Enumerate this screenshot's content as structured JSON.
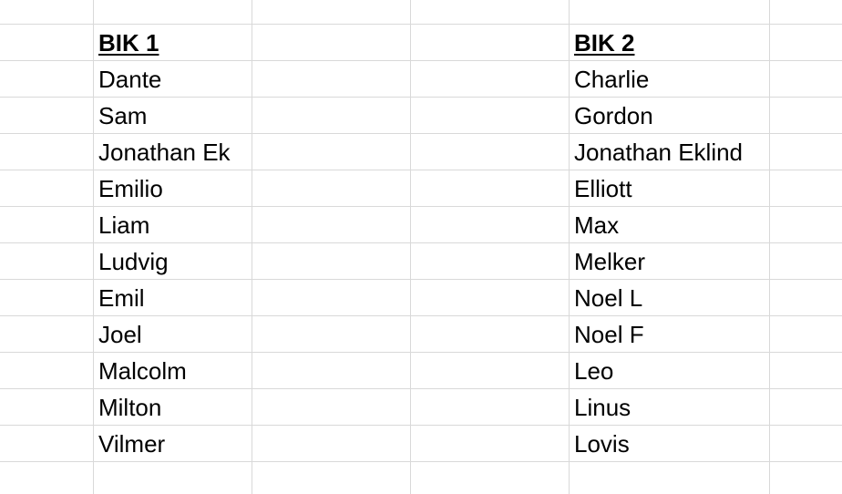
{
  "columns": [
    {
      "header": "BIK 1",
      "names": [
        "Dante",
        "Sam",
        "Jonathan Ek",
        "Emilio",
        "Liam",
        "Ludvig",
        "Emil",
        "Joel",
        "Malcolm",
        "Milton",
        "Vilmer"
      ]
    },
    {
      "header": "BIK 2",
      "names": [
        "Charlie",
        "Gordon",
        "Jonathan Eklind",
        "Elliott",
        "Max",
        "Melker",
        "Noel L",
        "Noel F",
        "Leo",
        "Linus",
        "Lovis"
      ]
    }
  ]
}
